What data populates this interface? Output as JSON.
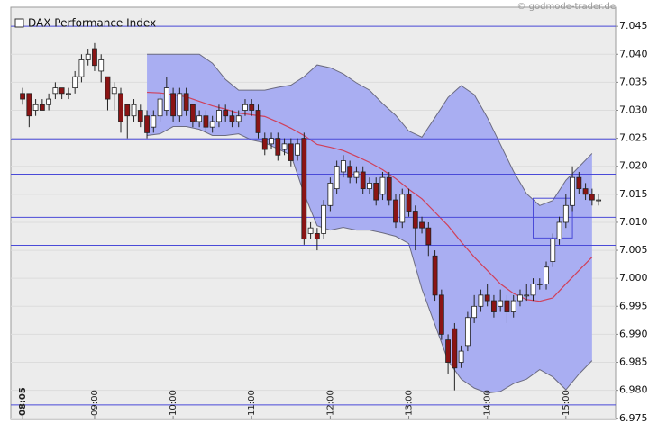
{
  "chart_data": {
    "type": "candlestick",
    "title": "DAX Performance Index",
    "source": "© godmode-trader.de",
    "x": [
      "08:05",
      "08:10",
      "08:15",
      "08:20",
      "08:25",
      "08:30",
      "08:35",
      "08:40",
      "08:45",
      "08:50",
      "08:55",
      "09:00",
      "09:05",
      "09:10",
      "09:15",
      "09:20",
      "09:25",
      "09:30",
      "09:35",
      "09:40",
      "09:45",
      "09:50",
      "09:55",
      "10:00",
      "10:05",
      "10:10",
      "10:15",
      "10:20",
      "10:25",
      "10:30",
      "10:35",
      "10:40",
      "10:45",
      "10:50",
      "10:55",
      "11:00",
      "11:05",
      "11:10",
      "11:15",
      "11:20",
      "11:25",
      "11:30",
      "11:35",
      "11:40",
      "11:45",
      "11:50",
      "11:55",
      "12:00",
      "12:05",
      "12:10",
      "12:15",
      "12:20",
      "12:25",
      "12:30",
      "12:35",
      "12:40",
      "12:45",
      "12:50",
      "12:55",
      "13:00",
      "13:05",
      "13:10",
      "13:15",
      "13:20",
      "13:25",
      "13:30",
      "13:35",
      "13:40",
      "13:45",
      "13:50",
      "13:55",
      "14:00",
      "14:05",
      "14:10",
      "14:15",
      "14:20",
      "14:25",
      "14:30",
      "14:35",
      "14:40",
      "14:45",
      "14:50",
      "14:55",
      "15:00",
      "15:05",
      "15:10",
      "15:15",
      "15:20",
      "15:25"
    ],
    "open": [
      7.033,
      7.033,
      7.03,
      7.031,
      7.031,
      7.033,
      7.034,
      7.033,
      7.034,
      7.036,
      7.039,
      7.041,
      7.037,
      7.036,
      7.033,
      7.033,
      7.031,
      7.029,
      7.03,
      7.029,
      7.027,
      7.029,
      7.03,
      7.033,
      7.029,
      7.033,
      7.031,
      7.028,
      7.029,
      7.027,
      7.028,
      7.03,
      7.029,
      7.028,
      7.03,
      7.031,
      7.03,
      7.025,
      7.024,
      7.025,
      7.023,
      7.024,
      7.022,
      7.025,
      7.008,
      7.008,
      7.008,
      7.013,
      7.016,
      7.019,
      7.02,
      7.018,
      7.019,
      7.016,
      7.017,
      7.015,
      7.018,
      7.014,
      7.01,
      7.015,
      7.012,
      7.01,
      7.009,
      7.004,
      6.997,
      6.989,
      6.991,
      6.985,
      6.988,
      6.993,
      6.995,
      6.997,
      6.996,
      6.995,
      6.996,
      6.994,
      6.996,
      6.997,
      6.997,
      6.999,
      6.999,
      7.003,
      7.007,
      7.01,
      7.013,
      7.018,
      7.016,
      7.015,
      7.014
    ],
    "high": [
      7.034,
      7.033,
      7.032,
      7.032,
      7.033,
      7.035,
      7.034,
      7.034,
      7.037,
      7.04,
      7.041,
      7.042,
      7.04,
      7.036,
      7.035,
      7.034,
      7.031,
      7.032,
      7.031,
      7.03,
      7.03,
      7.033,
      7.036,
      7.034,
      7.034,
      7.034,
      7.031,
      7.03,
      7.03,
      7.029,
      7.031,
      7.031,
      7.03,
      7.03,
      7.032,
      7.032,
      7.031,
      7.026,
      7.026,
      7.026,
      7.025,
      7.025,
      7.025,
      7.026,
      7.01,
      7.009,
      7.014,
      7.018,
      7.021,
      7.022,
      7.021,
      7.02,
      7.02,
      7.018,
      7.018,
      7.019,
      7.019,
      7.015,
      7.016,
      7.016,
      7.013,
      7.011,
      7.01,
      7.005,
      6.998,
      6.99,
      6.992,
      6.988,
      6.994,
      6.997,
      6.998,
      6.999,
      6.997,
      6.998,
      6.997,
      6.997,
      6.998,
      6.999,
      7.0,
      7.0,
      7.003,
      7.008,
      7.011,
      7.015,
      7.02,
      7.019,
      7.017,
      7.016,
      7.015
    ],
    "low": [
      7.031,
      7.027,
      7.029,
      7.03,
      7.03,
      7.032,
      7.032,
      7.032,
      7.033,
      7.035,
      7.038,
      7.037,
      7.035,
      7.03,
      7.03,
      7.026,
      7.025,
      7.028,
      7.027,
      7.025,
      7.026,
      7.028,
      7.029,
      7.028,
      7.028,
      7.029,
      7.027,
      7.027,
      7.026,
      7.026,
      7.027,
      7.028,
      7.027,
      7.027,
      7.029,
      7.029,
      7.025,
      7.022,
      7.023,
      7.021,
      7.022,
      7.02,
      7.021,
      7.006,
      7.007,
      7.005,
      7.007,
      7.012,
      7.015,
      7.018,
      7.017,
      7.017,
      7.015,
      7.015,
      7.013,
      7.014,
      7.013,
      7.009,
      7.009,
      7.011,
      7.005,
      7.008,
      7.004,
      6.996,
      6.989,
      6.983,
      6.98,
      6.984,
      6.987,
      6.992,
      6.994,
      6.995,
      6.993,
      6.994,
      6.992,
      6.993,
      6.995,
      6.996,
      6.996,
      6.998,
      6.998,
      7.002,
      7.006,
      7.009,
      7.012,
      7.015,
      7.014,
      7.013,
      7.013
    ],
    "close": [
      7.032,
      7.029,
      7.031,
      7.03,
      7.032,
      7.034,
      7.033,
      7.033,
      7.036,
      7.039,
      7.04,
      7.038,
      7.039,
      7.032,
      7.034,
      7.028,
      7.029,
      7.031,
      7.028,
      7.026,
      7.029,
      7.032,
      7.034,
      7.029,
      7.033,
      7.03,
      7.028,
      7.029,
      7.027,
      7.028,
      7.03,
      7.029,
      7.028,
      7.029,
      7.031,
      7.03,
      7.026,
      7.023,
      7.025,
      7.022,
      7.024,
      7.021,
      7.024,
      7.007,
      7.009,
      7.007,
      7.013,
      7.017,
      7.02,
      7.021,
      7.018,
      7.019,
      7.016,
      7.017,
      7.014,
      7.018,
      7.014,
      7.01,
      7.015,
      7.012,
      7.009,
      7.009,
      7.006,
      6.997,
      6.99,
      6.985,
      6.984,
      6.987,
      6.993,
      6.995,
      6.997,
      6.996,
      6.994,
      6.996,
      6.994,
      6.996,
      6.997,
      6.997,
      6.999,
      6.999,
      7.002,
      7.007,
      7.01,
      7.013,
      7.018,
      7.016,
      7.015,
      7.014,
      7.014
    ],
    "up_color": "#ffffff",
    "down_color": "#8b1414",
    "bands": {
      "x": [
        "09:40",
        "09:50",
        "10:00",
        "10:10",
        "10:20",
        "10:30",
        "10:40",
        "10:50",
        "11:00",
        "11:10",
        "11:20",
        "11:30",
        "11:40",
        "11:50",
        "12:00",
        "12:10",
        "12:20",
        "12:30",
        "12:40",
        "12:50",
        "13:00",
        "13:10",
        "13:20",
        "13:30",
        "13:40",
        "13:50",
        "14:00",
        "14:10",
        "14:20",
        "14:30",
        "14:40",
        "14:50",
        "15:00",
        "15:10",
        "15:20"
      ],
      "upper": [
        7.04,
        7.04,
        7.04,
        7.04,
        7.04,
        7.0384,
        7.0355,
        7.0336,
        7.0336,
        7.0336,
        7.0341,
        7.0345,
        7.036,
        7.0381,
        7.0376,
        7.0365,
        7.0349,
        7.0336,
        7.0312,
        7.0291,
        7.0263,
        7.0252,
        7.0287,
        7.0323,
        7.0344,
        7.0328,
        7.0287,
        7.0239,
        7.0191,
        7.0151,
        7.013,
        7.0139,
        7.0175,
        7.0199,
        7.0223
      ],
      "middle": [
        7.0332,
        7.0331,
        7.0328,
        7.0324,
        7.0316,
        7.0308,
        7.0302,
        7.0295,
        7.0292,
        7.0289,
        7.0279,
        7.0268,
        7.0255,
        7.0239,
        7.0234,
        7.0228,
        7.0218,
        7.0207,
        7.0194,
        7.0178,
        7.0159,
        7.0142,
        7.0118,
        7.0094,
        7.0065,
        7.0038,
        7.0014,
        6.999,
        6.9973,
        6.9962,
        6.9959,
        6.9965,
        6.999,
        7.0014,
        7.0038
      ],
      "lower": [
        7.0255,
        7.0258,
        7.0271,
        7.0271,
        7.0266,
        7.0255,
        7.0255,
        7.0258,
        7.0247,
        7.0242,
        7.0231,
        7.022,
        7.0151,
        7.0094,
        7.0086,
        7.0091,
        7.0086,
        7.0086,
        7.0081,
        7.0075,
        7.0062,
        6.9981,
        6.9917,
        6.9853,
        6.982,
        6.9804,
        6.9795,
        6.9798,
        6.9812,
        6.982,
        6.9837,
        6.9824,
        6.9801,
        6.9829,
        6.9853
      ],
      "fill": "#a9aef2",
      "edge": "#6b6b80",
      "middle_color": "#d0405a"
    },
    "levels": {
      "values": [
        7.045,
        7.0249,
        7.0186,
        7.0109,
        7.0059,
        6.9774
      ],
      "color": "#4a4ad8"
    },
    "box": {
      "x": [
        "14:35",
        "15:05"
      ],
      "y": [
        7.0072,
        7.0143
      ],
      "color": "#4a4ad8"
    },
    "xlim": [
      "07:56",
      "15:38"
    ],
    "ylim": [
      6.9748,
      7.0484
    ],
    "xticks": [
      "08:05",
      "09:00",
      "10:00",
      "11:00",
      "12:00",
      "13:00",
      "14:00",
      "15:00"
    ],
    "yticks": [
      6.975,
      {
        "value": 6.98,
        "label": "6.980"
      },
      6.985,
      {
        "value": 6.99,
        "label": "6.990"
      },
      6.995,
      {
        "value": 7,
        "label": "7.000"
      },
      7.005,
      {
        "value": 7.01,
        "label": "7.010"
      },
      7.015,
      {
        "value": 7.02,
        "label": "7.020"
      },
      7.025,
      {
        "value": 7.03,
        "label": "7.030"
      },
      7.035,
      {
        "value": 7.04,
        "label": "7.040"
      },
      7.045
    ],
    "grid": true
  }
}
